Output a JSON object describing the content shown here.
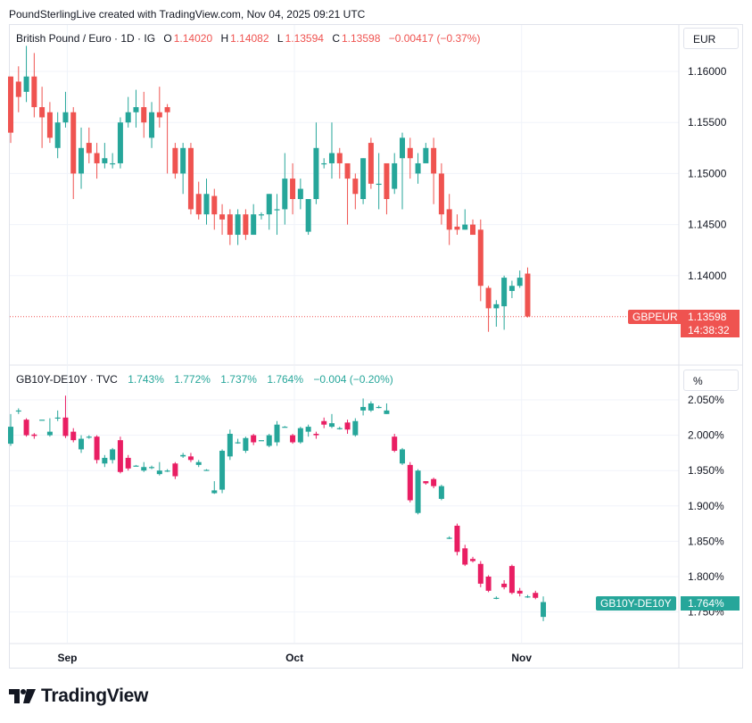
{
  "header": "PoundSterlingLive created with TradingView.com, Nov 04, 2025 09:21 UTC",
  "footer_brand": "TradingView",
  "colors": {
    "up": "#26a69a",
    "down_top": "#ef5350",
    "down_bottom": "#e91e63",
    "grid": "#f0f3fa",
    "text": "#131722"
  },
  "top_panel": {
    "symbol": "British Pound / Euro · 1D · IG",
    "o_label": "O",
    "o": "1.14020",
    "h_label": "H",
    "h": "1.14082",
    "l_label": "L",
    "l": "1.13594",
    "c_label": "C",
    "c": "1.13598",
    "change": "−0.00417 (−0.37%)",
    "unit": "EUR",
    "last_label": "GBPEUR",
    "last_value": "1.13598",
    "countdown": "14:38:32"
  },
  "bottom_panel": {
    "symbol": "GB10Y-DE10Y · TVC",
    "o": "1.743%",
    "h": "1.772%",
    "l": "1.737%",
    "c": "1.764%",
    "change": "−0.004 (−0.20%)",
    "unit": "%",
    "last_label": "GB10Y-DE10Y",
    "last_value": "1.764%"
  },
  "chart_data": [
    {
      "type": "candlestick",
      "title": "British Pound / Euro · 1D · IG",
      "y_ticks": [
        "1.16000",
        "1.15500",
        "1.15000",
        "1.14500",
        "1.14000"
      ],
      "ylim": [
        1.1345,
        1.1637
      ],
      "x_ticks": [
        {
          "label": "Sep",
          "index": 7
        },
        {
          "label": "Oct",
          "index": 36
        },
        {
          "label": "Nov",
          "index": 65
        }
      ],
      "grid": true,
      "candles": [
        [
          1.1595,
          1.154,
          1.1595,
          1.153
        ],
        [
          1.159,
          1.1575,
          1.1605,
          1.156
        ],
        [
          1.158,
          1.1595,
          1.1625,
          1.157
        ],
        [
          1.1595,
          1.1565,
          1.1618,
          1.1555
        ],
        [
          1.1565,
          1.1555,
          1.1585,
          1.1525
        ],
        [
          1.156,
          1.1535,
          1.157,
          1.153
        ],
        [
          1.1525,
          1.155,
          1.156,
          1.1515
        ],
        [
          1.155,
          1.156,
          1.158,
          1.1545
        ],
        [
          1.156,
          1.15,
          1.1565,
          1.1475
        ],
        [
          1.15,
          1.1525,
          1.1545,
          1.1485
        ],
        [
          1.153,
          1.152,
          1.1545,
          1.151
        ],
        [
          1.152,
          1.151,
          1.153,
          1.1495
        ],
        [
          1.151,
          1.1515,
          1.153,
          1.1505
        ],
        [
          1.151,
          1.151,
          1.152,
          1.1505
        ],
        [
          1.151,
          1.155,
          1.1555,
          1.1505
        ],
        [
          1.155,
          1.156,
          1.1575,
          1.1545
        ],
        [
          1.156,
          1.1565,
          1.1582,
          1.1545
        ],
        [
          1.1565,
          1.155,
          1.158,
          1.1535
        ],
        [
          1.1535,
          1.156,
          1.157,
          1.1525
        ],
        [
          1.156,
          1.1555,
          1.1585,
          1.1545
        ],
        [
          1.1565,
          1.156,
          1.1568,
          1.15
        ],
        [
          1.1525,
          1.15,
          1.153,
          1.1495
        ],
        [
          1.15,
          1.1525,
          1.153,
          1.148
        ],
        [
          1.1525,
          1.1465,
          1.153,
          1.146
        ],
        [
          1.148,
          1.146,
          1.1492,
          1.1455
        ],
        [
          1.146,
          1.148,
          1.1495,
          1.145
        ],
        [
          1.1478,
          1.146,
          1.1485,
          1.1445
        ],
        [
          1.146,
          1.1455,
          1.147,
          1.144
        ],
        [
          1.146,
          1.144,
          1.1465,
          1.143
        ],
        [
          1.144,
          1.146,
          1.1465,
          1.143
        ],
        [
          1.146,
          1.144,
          1.1465,
          1.1435
        ],
        [
          1.144,
          1.146,
          1.147,
          1.144
        ],
        [
          1.146,
          1.146,
          1.1462,
          1.1455
        ],
        [
          1.146,
          1.148,
          1.148,
          1.1445
        ],
        [
          1.1465,
          1.1465,
          1.148,
          1.144
        ],
        [
          1.1465,
          1.1495,
          1.152,
          1.145
        ],
        [
          1.1495,
          1.1475,
          1.151,
          1.146
        ],
        [
          1.1475,
          1.1485,
          1.1495,
          1.1465
        ],
        [
          1.1443,
          1.1475,
          1.1475,
          1.144
        ],
        [
          1.1475,
          1.1525,
          1.155,
          1.147
        ],
        [
          1.151,
          1.151,
          1.1515,
          1.1505
        ],
        [
          1.151,
          1.152,
          1.155,
          1.1495
        ],
        [
          1.152,
          1.151,
          1.1525,
          1.1495
        ],
        [
          1.151,
          1.1495,
          1.15,
          1.145
        ],
        [
          1.1495,
          1.148,
          1.15,
          1.1465
        ],
        [
          1.1475,
          1.1515,
          1.1515,
          1.147
        ],
        [
          1.153,
          1.149,
          1.1535,
          1.1485
        ],
        [
          1.149,
          1.149,
          1.152,
          1.1465
        ],
        [
          1.151,
          1.1475,
          1.1505,
          1.146
        ],
        [
          1.1485,
          1.151,
          1.152,
          1.148
        ],
        [
          1.1515,
          1.1535,
          1.154,
          1.1465
        ],
        [
          1.1525,
          1.1515,
          1.1535,
          1.1495
        ],
        [
          1.15,
          1.151,
          1.152,
          1.149
        ],
        [
          1.151,
          1.1525,
          1.153,
          1.151
        ],
        [
          1.1525,
          1.15,
          1.1535,
          1.147
        ],
        [
          1.15,
          1.146,
          1.151,
          1.145
        ],
        [
          1.1465,
          1.1445,
          1.148,
          1.143
        ],
        [
          1.1448,
          1.1445,
          1.146,
          1.144
        ],
        [
          1.1445,
          1.145,
          1.1465,
          1.1445
        ],
        [
          1.145,
          1.144,
          1.1455,
          1.144
        ],
        [
          1.1445,
          1.139,
          1.1455,
          1.1375
        ],
        [
          1.1388,
          1.1368,
          1.139,
          1.1345
        ],
        [
          1.1368,
          1.1372,
          1.1376,
          1.135
        ],
        [
          1.137,
          1.1398,
          1.14,
          1.1347
        ],
        [
          1.1385,
          1.139,
          1.1395,
          1.1378
        ],
        [
          1.139,
          1.1398,
          1.1405,
          1.1388
        ],
        [
          1.1402,
          1.136,
          1.1408,
          1.1359
        ]
      ]
    },
    {
      "type": "candlestick",
      "title": "GB10Y-DE10Y · TVC",
      "y_ticks": [
        "2.050%",
        "2.000%",
        "1.950%",
        "1.900%",
        "1.850%",
        "1.800%",
        "1.750%"
      ],
      "ylim": [
        1.709,
        2.078
      ],
      "x_ticks": [
        {
          "label": "Sep",
          "index": 7
        },
        {
          "label": "Oct",
          "index": 36
        },
        {
          "label": "Nov",
          "index": 65
        }
      ],
      "grid": true,
      "candles": [
        [
          1.988,
          2.012,
          2.03,
          1.985
        ],
        [
          2.035,
          2.035,
          2.038,
          2.03
        ],
        [
          2.022,
          2.0,
          2.024,
          1.998
        ],
        [
          2.001,
          1.999,
          2.003,
          1.995
        ],
        [
          2.022,
          2.022,
          2.022,
          2.022
        ],
        [
          2.0,
          2.005,
          2.024,
          1.998
        ],
        [
          2.025,
          2.025,
          2.035,
          2.02
        ],
        [
          2.025,
          1.999,
          2.056,
          1.996
        ],
        [
          2.005,
          1.993,
          2.01,
          1.99
        ],
        [
          1.98,
          1.995,
          2.0,
          1.975
        ],
        [
          1.998,
          1.998,
          2.0,
          1.995
        ],
        [
          1.998,
          1.965,
          2.0,
          1.96
        ],
        [
          1.96,
          1.968,
          1.972,
          1.955
        ],
        [
          1.965,
          1.98,
          1.982,
          1.96
        ],
        [
          1.993,
          1.948,
          1.998,
          1.946
        ],
        [
          1.968,
          1.953,
          1.972,
          1.95
        ],
        [
          1.957,
          1.957,
          1.958,
          1.957
        ],
        [
          1.95,
          1.955,
          1.962,
          1.948
        ],
        [
          1.955,
          1.955,
          1.957,
          1.952
        ],
        [
          1.945,
          1.95,
          1.962,
          1.943
        ],
        [
          1.95,
          1.95,
          1.952,
          1.948
        ],
        [
          1.96,
          1.942,
          1.962,
          1.938
        ],
        [
          1.97,
          1.972,
          1.975,
          1.968
        ],
        [
          1.97,
          1.965,
          1.975,
          1.962
        ],
        [
          1.958,
          1.962,
          1.965,
          1.955
        ],
        [
          1.951,
          1.951,
          1.952,
          1.95
        ],
        [
          1.918,
          1.922,
          1.935,
          1.917
        ],
        [
          1.923,
          1.978,
          1.98,
          1.918
        ],
        [
          1.97,
          2.002,
          2.008,
          1.965
        ],
        [
          1.99,
          1.99,
          1.995,
          1.988
        ],
        [
          1.978,
          1.996,
          1.998,
          1.975
        ],
        [
          2.0,
          1.99,
          2.002,
          1.986
        ],
        [
          1.993,
          1.993,
          1.993,
          1.993
        ],
        [
          1.985,
          2.0,
          2.002,
          1.983
        ],
        [
          1.99,
          2.015,
          2.02,
          1.985
        ],
        [
          2.012,
          2.012,
          2.013,
          2.011
        ],
        [
          2.0,
          1.99,
          2.002,
          1.988
        ],
        [
          1.99,
          2.01,
          2.012,
          1.988
        ],
        [
          2.005,
          2.012,
          2.015,
          1.998
        ],
        [
          2.002,
          2.0,
          2.005,
          1.995
        ],
        [
          2.02,
          2.015,
          2.025,
          2.01
        ],
        [
          2.012,
          2.017,
          2.03,
          2.01
        ],
        [
          2.01,
          2.01,
          2.012,
          2.008
        ],
        [
          2.018,
          2.008,
          2.022,
          2.002
        ],
        [
          2.0,
          2.02,
          2.024,
          1.998
        ],
        [
          2.035,
          2.04,
          2.052,
          2.028
        ],
        [
          2.035,
          2.045,
          2.048,
          2.033
        ],
        [
          2.04,
          2.04,
          2.042,
          2.038
        ],
        [
          2.03,
          2.035,
          2.045,
          2.03
        ],
        [
          1.998,
          1.978,
          2.002,
          1.976
        ],
        [
          1.96,
          1.98,
          1.982,
          1.958
        ],
        [
          1.958,
          1.908,
          1.962,
          1.905
        ],
        [
          1.89,
          1.95,
          1.952,
          1.888
        ],
        [
          1.935,
          1.932,
          1.935,
          1.93
        ],
        [
          1.938,
          1.928,
          1.94,
          1.925
        ],
        [
          1.91,
          1.928,
          1.93,
          1.908
        ],
        [
          1.855,
          1.855,
          1.857,
          1.853
        ],
        [
          1.872,
          1.835,
          1.875,
          1.83
        ],
        [
          1.84,
          1.817,
          1.845,
          1.815
        ],
        [
          1.825,
          1.822,
          1.828,
          1.82
        ],
        [
          1.818,
          1.79,
          1.822,
          1.785
        ],
        [
          1.8,
          1.78,
          1.802,
          1.778
        ],
        [
          1.77,
          1.77,
          1.772,
          1.768
        ],
        [
          1.79,
          1.785,
          1.795,
          1.782
        ],
        [
          1.815,
          1.777,
          1.817,
          1.775
        ],
        [
          1.78,
          1.776,
          1.784,
          1.772
        ],
        [
          1.772,
          1.772,
          1.774,
          1.77
        ],
        [
          1.777,
          1.77,
          1.78,
          1.768
        ],
        [
          1.743,
          1.764,
          1.772,
          1.737
        ]
      ]
    }
  ]
}
